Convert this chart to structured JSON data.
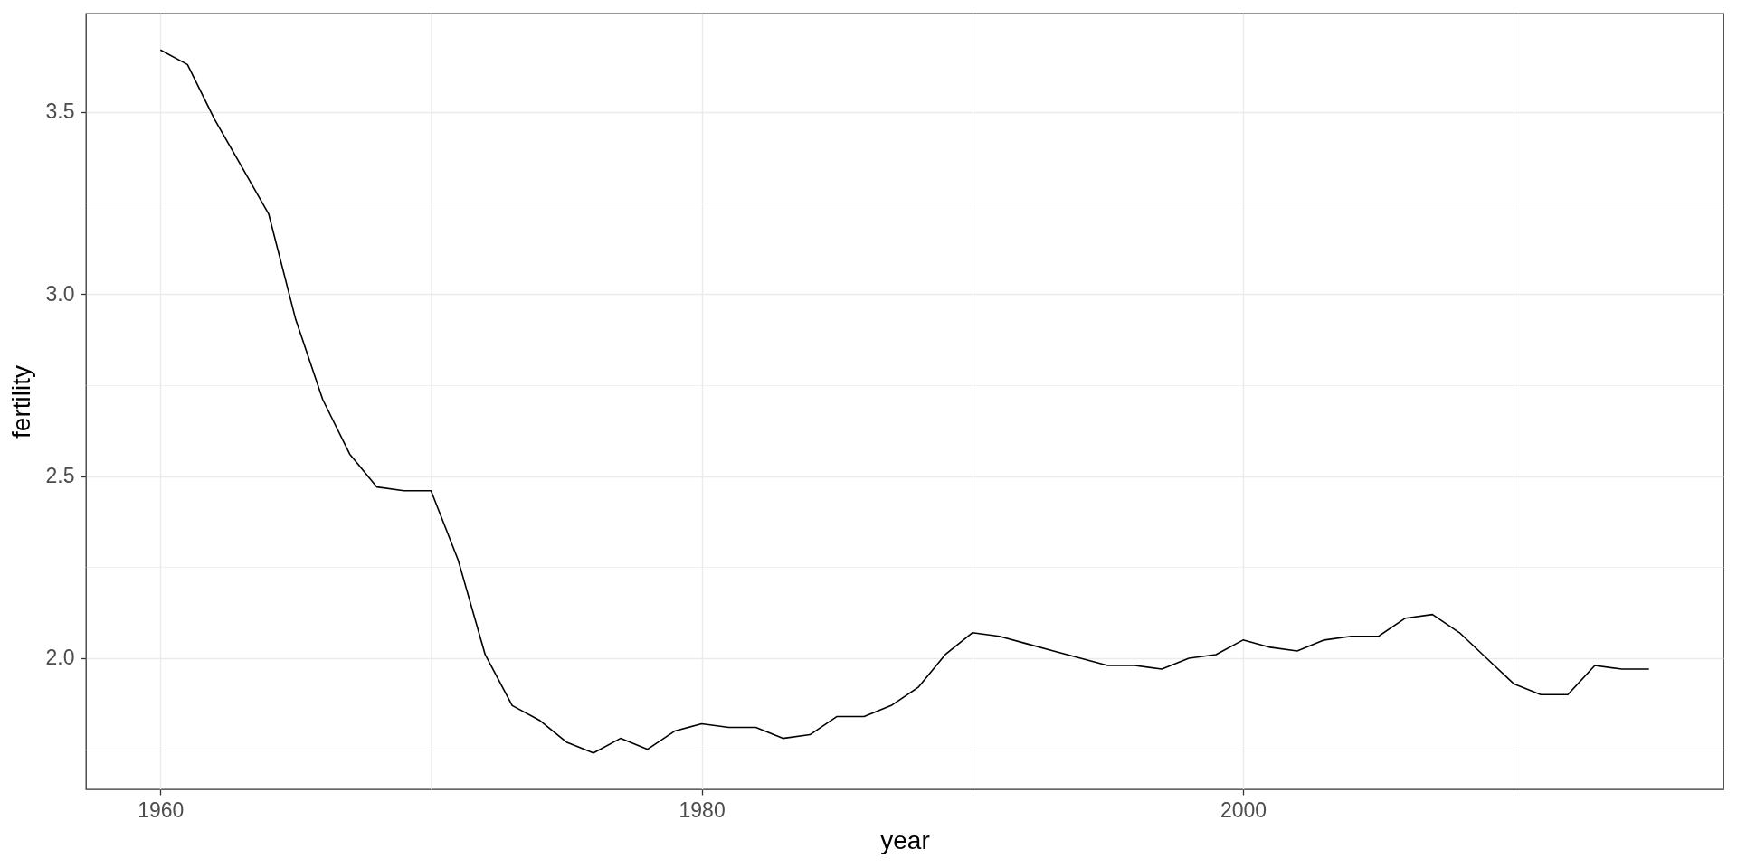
{
  "chart_data": {
    "type": "line",
    "xlabel": "year",
    "ylabel": "fertility",
    "x": [
      1960,
      1961,
      1962,
      1963,
      1964,
      1965,
      1966,
      1967,
      1968,
      1969,
      1970,
      1971,
      1972,
      1973,
      1974,
      1975,
      1976,
      1977,
      1978,
      1979,
      1980,
      1981,
      1982,
      1983,
      1984,
      1985,
      1986,
      1987,
      1988,
      1989,
      1990,
      1991,
      1992,
      1993,
      1994,
      1995,
      1996,
      1997,
      1998,
      1999,
      2000,
      2001,
      2002,
      2003,
      2004,
      2005,
      2006,
      2007,
      2008,
      2009,
      2010,
      2011,
      2012,
      2013,
      2014,
      2015
    ],
    "series": [
      {
        "color": "#000000",
        "values": [
          3.67,
          3.63,
          3.48,
          3.35,
          3.22,
          2.93,
          2.71,
          2.56,
          2.47,
          2.46,
          2.46,
          2.27,
          2.01,
          1.87,
          1.83,
          1.77,
          1.74,
          1.78,
          1.75,
          1.8,
          1.82,
          1.81,
          1.81,
          1.78,
          1.79,
          1.84,
          1.84,
          1.87,
          1.92,
          2.01,
          2.07,
          2.06,
          2.04,
          2.02,
          2.0,
          1.98,
          1.98,
          1.97,
          2.0,
          2.01,
          2.05,
          2.03,
          2.02,
          2.05,
          2.06,
          2.06,
          2.11,
          2.12,
          2.07,
          2.0,
          1.93,
          1.9,
          1.9,
          1.98,
          1.97,
          1.97
        ]
      }
    ],
    "xlim": [
      1957.25,
      2017.75
    ],
    "ylim": [
      1.64,
      3.77
    ],
    "xticks": [
      1960,
      {
        "value": 1970,
        "label": null
      },
      1980,
      {
        "value": 1990,
        "label": null
      },
      2000,
      {
        "value": 2010,
        "label": null
      }
    ],
    "yticks": [
      {
        "value": 1.75,
        "label": null
      },
      {
        "value": 2,
        "label": "2.0"
      },
      {
        "value": 2.25,
        "label": null
      },
      2.5,
      {
        "value": 2.75,
        "label": null
      },
      {
        "value": 3,
        "label": "3.0"
      },
      {
        "value": 3.25,
        "label": null
      },
      3.5
    ],
    "grid": true,
    "line_style": "solid"
  }
}
